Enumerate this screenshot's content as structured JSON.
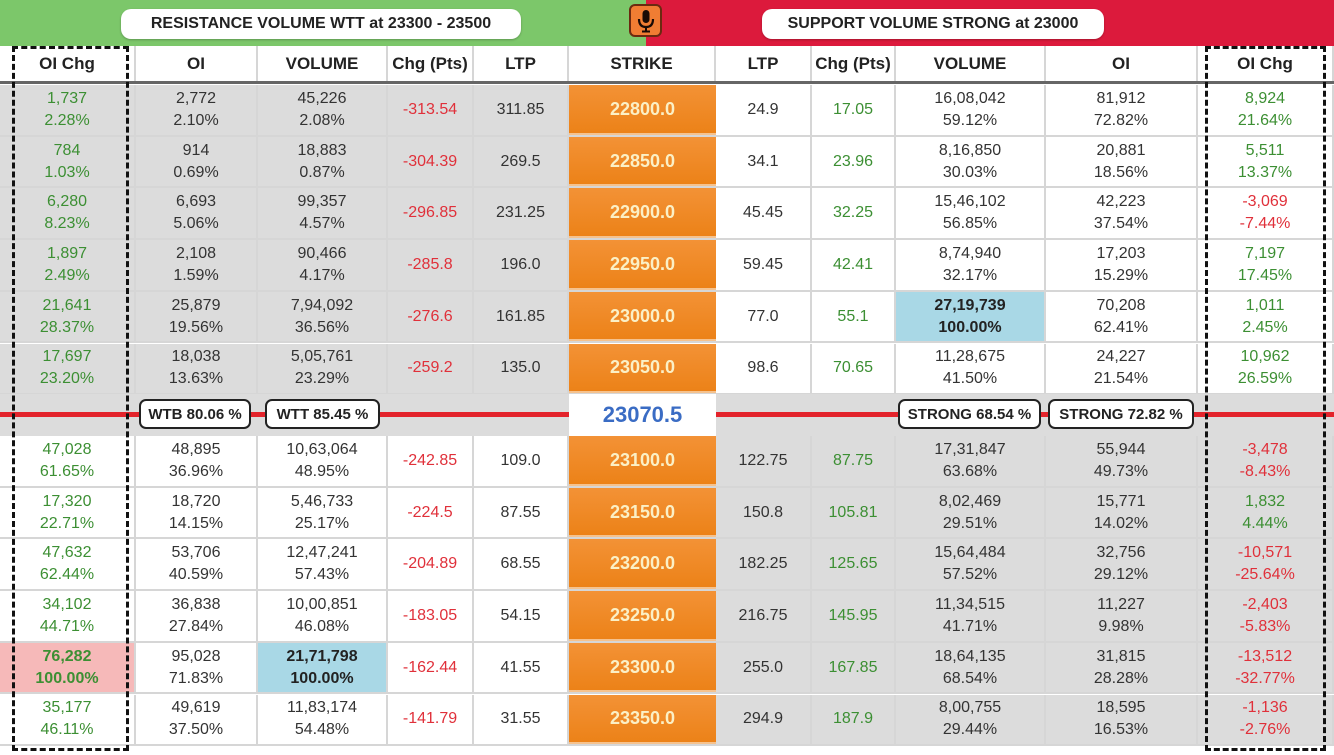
{
  "header": {
    "resistance_banner": "RESISTANCE VOLUME WTT at 23300 - 23500",
    "support_banner": "SUPPORT VOLUME STRONG at 23000",
    "mic_icon": "microphone-icon",
    "colors": {
      "resistance_bg": "#7cc76a",
      "support_bg": "#dc1a3c",
      "strike_bg": "#ee861f",
      "spot_text": "#3a6cc4",
      "positive": "#3c8f33",
      "negative": "#e0303a",
      "highlight_blue": "#a9d8e6",
      "highlight_pink": "#f6b9b9"
    }
  },
  "columns": {
    "call": [
      "OI Chg",
      "OI",
      "VOLUME",
      "Chg (Pts)",
      "LTP"
    ],
    "strike": "STRIKE",
    "put": [
      "LTP",
      "Chg (Pts)",
      "VOLUME",
      "OI",
      "OI Chg"
    ]
  },
  "spot_price": "23070.5",
  "divider_badges": {
    "call_oi": "WTB 80.06 %",
    "call_volume": "WTT 85.45 %",
    "put_volume": "STRONG 68.54 %",
    "put_oi": "STRONG 72.82 %"
  },
  "rows": [
    {
      "strike": "22800.0",
      "call": {
        "oichg": "1,737",
        "oichg_pct": "2.28%",
        "oi": "2,772",
        "oi_pct": "2.10%",
        "vol": "45,226",
        "vol_pct": "2.08%",
        "chg": "-313.54",
        "ltp": "311.85"
      },
      "put": {
        "ltp": "24.9",
        "chg": "17.05",
        "vol": "16,08,042",
        "vol_pct": "59.12%",
        "oi": "81,912",
        "oi_pct": "72.82%",
        "oichg": "8,924",
        "oichg_pct": "21.64%"
      }
    },
    {
      "strike": "22850.0",
      "call": {
        "oichg": "784",
        "oichg_pct": "1.03%",
        "oi": "914",
        "oi_pct": "0.69%",
        "vol": "18,883",
        "vol_pct": "0.87%",
        "chg": "-304.39",
        "ltp": "269.5"
      },
      "put": {
        "ltp": "34.1",
        "chg": "23.96",
        "vol": "8,16,850",
        "vol_pct": "30.03%",
        "oi": "20,881",
        "oi_pct": "18.56%",
        "oichg": "5,511",
        "oichg_pct": "13.37%"
      }
    },
    {
      "strike": "22900.0",
      "call": {
        "oichg": "6,280",
        "oichg_pct": "8.23%",
        "oi": "6,693",
        "oi_pct": "5.06%",
        "vol": "99,357",
        "vol_pct": "4.57%",
        "chg": "-296.85",
        "ltp": "231.25"
      },
      "put": {
        "ltp": "45.45",
        "chg": "32.25",
        "vol": "15,46,102",
        "vol_pct": "56.85%",
        "oi": "42,223",
        "oi_pct": "37.54%",
        "oichg": "-3,069",
        "oichg_pct": "-7.44%"
      }
    },
    {
      "strike": "22950.0",
      "call": {
        "oichg": "1,897",
        "oichg_pct": "2.49%",
        "oi": "2,108",
        "oi_pct": "1.59%",
        "vol": "90,466",
        "vol_pct": "4.17%",
        "chg": "-285.8",
        "ltp": "196.0"
      },
      "put": {
        "ltp": "59.45",
        "chg": "42.41",
        "vol": "8,74,940",
        "vol_pct": "32.17%",
        "oi": "17,203",
        "oi_pct": "15.29%",
        "oichg": "7,197",
        "oichg_pct": "17.45%"
      }
    },
    {
      "strike": "23000.0",
      "call": {
        "oichg": "21,641",
        "oichg_pct": "28.37%",
        "oi": "25,879",
        "oi_pct": "19.56%",
        "vol": "7,94,092",
        "vol_pct": "36.56%",
        "chg": "-276.6",
        "ltp": "161.85"
      },
      "put": {
        "ltp": "77.0",
        "chg": "55.1",
        "vol": "27,19,739",
        "vol_pct": "100.00%",
        "oi": "70,208",
        "oi_pct": "62.41%",
        "oichg": "1,011",
        "oichg_pct": "2.45%"
      }
    },
    {
      "strike": "23050.0",
      "call": {
        "oichg": "17,697",
        "oichg_pct": "23.20%",
        "oi": "18,038",
        "oi_pct": "13.63%",
        "vol": "5,05,761",
        "vol_pct": "23.29%",
        "chg": "-259.2",
        "ltp": "135.0"
      },
      "put": {
        "ltp": "98.6",
        "chg": "70.65",
        "vol": "11,28,675",
        "vol_pct": "41.50%",
        "oi": "24,227",
        "oi_pct": "21.54%",
        "oichg": "10,962",
        "oichg_pct": "26.59%"
      }
    },
    {
      "strike": "23100.0",
      "call": {
        "oichg": "47,028",
        "oichg_pct": "61.65%",
        "oi": "48,895",
        "oi_pct": "36.96%",
        "vol": "10,63,064",
        "vol_pct": "48.95%",
        "chg": "-242.85",
        "ltp": "109.0"
      },
      "put": {
        "ltp": "122.75",
        "chg": "87.75",
        "vol": "17,31,847",
        "vol_pct": "63.68%",
        "oi": "55,944",
        "oi_pct": "49.73%",
        "oichg": "-3,478",
        "oichg_pct": "-8.43%"
      }
    },
    {
      "strike": "23150.0",
      "call": {
        "oichg": "17,320",
        "oichg_pct": "22.71%",
        "oi": "18,720",
        "oi_pct": "14.15%",
        "vol": "5,46,733",
        "vol_pct": "25.17%",
        "chg": "-224.5",
        "ltp": "87.55"
      },
      "put": {
        "ltp": "150.8",
        "chg": "105.81",
        "vol": "8,02,469",
        "vol_pct": "29.51%",
        "oi": "15,771",
        "oi_pct": "14.02%",
        "oichg": "1,832",
        "oichg_pct": "4.44%"
      }
    },
    {
      "strike": "23200.0",
      "call": {
        "oichg": "47,632",
        "oichg_pct": "62.44%",
        "oi": "53,706",
        "oi_pct": "40.59%",
        "vol": "12,47,241",
        "vol_pct": "57.43%",
        "chg": "-204.89",
        "ltp": "68.55"
      },
      "put": {
        "ltp": "182.25",
        "chg": "125.65",
        "vol": "15,64,484",
        "vol_pct": "57.52%",
        "oi": "32,756",
        "oi_pct": "29.12%",
        "oichg": "-10,571",
        "oichg_pct": "-25.64%"
      }
    },
    {
      "strike": "23250.0",
      "call": {
        "oichg": "34,102",
        "oichg_pct": "44.71%",
        "oi": "36,838",
        "oi_pct": "27.84%",
        "vol": "10,00,851",
        "vol_pct": "46.08%",
        "chg": "-183.05",
        "ltp": "54.15"
      },
      "put": {
        "ltp": "216.75",
        "chg": "145.95",
        "vol": "11,34,515",
        "vol_pct": "41.71%",
        "oi": "11,227",
        "oi_pct": "9.98%",
        "oichg": "-2,403",
        "oichg_pct": "-5.83%"
      }
    },
    {
      "strike": "23300.0",
      "call": {
        "oichg": "76,282",
        "oichg_pct": "100.00%",
        "oi": "95,028",
        "oi_pct": "71.83%",
        "vol": "21,71,798",
        "vol_pct": "100.00%",
        "chg": "-162.44",
        "ltp": "41.55"
      },
      "put": {
        "ltp": "255.0",
        "chg": "167.85",
        "vol": "18,64,135",
        "vol_pct": "68.54%",
        "oi": "31,815",
        "oi_pct": "28.28%",
        "oichg": "-13,512",
        "oichg_pct": "-32.77%"
      }
    },
    {
      "strike": "23350.0",
      "call": {
        "oichg": "35,177",
        "oichg_pct": "46.11%",
        "oi": "49,619",
        "oi_pct": "37.50%",
        "vol": "11,83,174",
        "vol_pct": "54.48%",
        "chg": "-141.79",
        "ltp": "31.55"
      },
      "put": {
        "ltp": "294.9",
        "chg": "187.9",
        "vol": "8,00,755",
        "vol_pct": "29.44%",
        "oi": "18,595",
        "oi_pct": "16.53%",
        "oichg": "-1,136",
        "oichg_pct": "-2.76%"
      }
    }
  ]
}
